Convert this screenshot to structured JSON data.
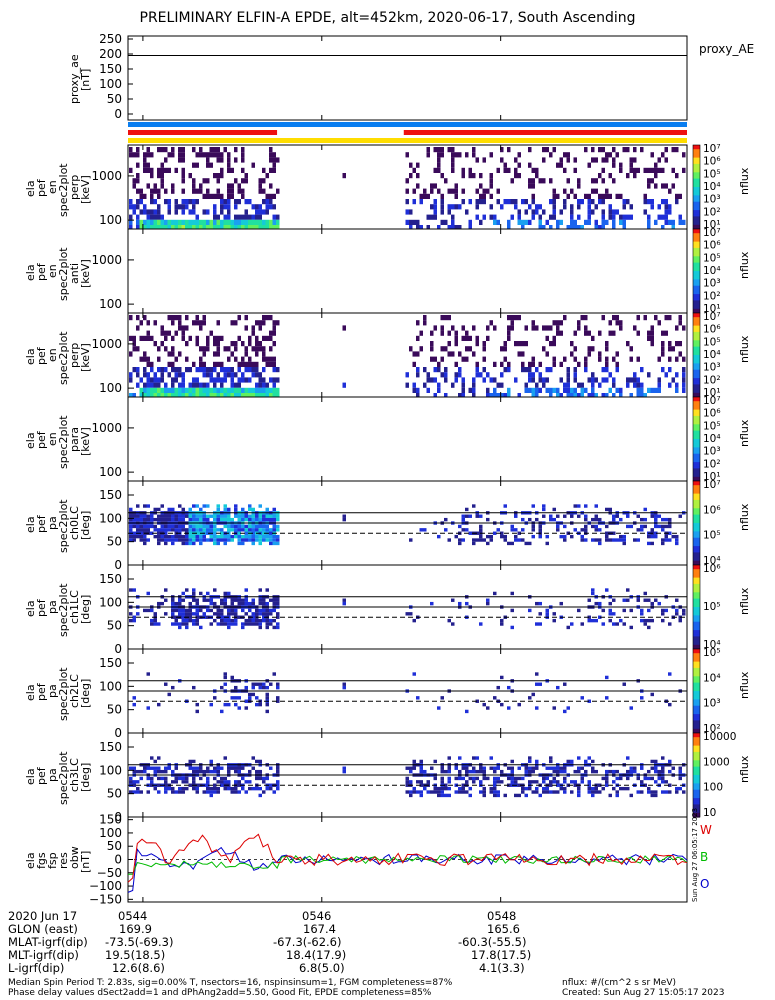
{
  "title": "PRELIMINARY ELFIN-A EPDE, alt=452km, 2020-06-17, South Ascending",
  "proxy_ae": {
    "ylabel_lines": [
      "proxy_ae",
      "[nT]"
    ],
    "legend": "proxy_AE",
    "ticks": [
      "250",
      "200",
      "150",
      "100",
      "50",
      "0"
    ],
    "tick_values": [
      250,
      200,
      150,
      100,
      50,
      0
    ],
    "ylim": [
      -20,
      260
    ],
    "value": 195
  },
  "status_bars": {
    "colors": {
      "blue": "#0a7ef0",
      "red": "#ee1010",
      "yellow": "#ffdd00"
    },
    "blue": {
      "start": "05:43:50",
      "end": "05:50:05"
    },
    "red": [
      {
        "start": "05:43:50",
        "end": "05:45:30"
      },
      {
        "start": "05:46:55",
        "end": "05:50:05"
      }
    ],
    "yellow": {
      "start": "05:43:50",
      "end": "05:50:05"
    }
  },
  "spectrograms": [
    {
      "id": "en-perp",
      "ylabel_lines": [
        "ela",
        "pef",
        "en",
        "spec2plot",
        "perp",
        "[keV]"
      ],
      "yticks": [
        "1000",
        "100"
      ],
      "yscale": "log",
      "ylim": [
        63,
        5000
      ],
      "cbar_ticks": [
        "10⁷",
        "10⁶",
        "10⁵",
        "10⁴",
        "10³",
        "10²",
        "10¹"
      ],
      "cbar_label": "nflux"
    },
    {
      "id": "en-anti",
      "ylabel_lines": [
        "ela",
        "pef",
        "en",
        "spec2plot",
        "anti",
        "[keV]"
      ],
      "yticks": [
        "1000",
        "100"
      ],
      "yscale": "log",
      "ylim": [
        63,
        5000
      ],
      "cbar_ticks": [
        "10⁷",
        "10⁶",
        "10⁵",
        "10⁴",
        "10³",
        "10²",
        "10¹"
      ],
      "cbar_label": "nflux"
    },
    {
      "id": "en-perp2",
      "ylabel_lines": [
        "ela",
        "pef",
        "en",
        "spec2plot",
        "perp",
        "[keV]"
      ],
      "yticks": [
        "1000",
        "100"
      ],
      "yscale": "log",
      "ylim": [
        63,
        5000
      ],
      "cbar_ticks": [
        "10⁷",
        "10⁶",
        "10⁵",
        "10⁴",
        "10³",
        "10²",
        "10¹"
      ],
      "cbar_label": "nflux"
    },
    {
      "id": "en-para",
      "ylabel_lines": [
        "ela",
        "pef",
        "en",
        "spec2plot",
        "para",
        "[keV]"
      ],
      "yticks": [
        "1000",
        "100"
      ],
      "yscale": "log",
      "ylim": [
        63,
        5000
      ],
      "cbar_ticks": [
        "10⁷",
        "10⁶",
        "10⁵",
        "10⁴",
        "10³",
        "10²",
        "10¹"
      ],
      "cbar_label": "nflux"
    },
    {
      "id": "pa-ch0",
      "ylabel_lines": [
        "ela",
        "pef",
        "pa",
        "spec2plot",
        "ch0LC",
        "[deg]"
      ],
      "yticks": [
        "150",
        "100",
        "50",
        "0"
      ],
      "yscale": "linear",
      "ylim": [
        0,
        180
      ],
      "cbar_ticks": [
        "10⁷",
        "10⁶",
        "10⁵",
        "10⁴"
      ],
      "cbar_label": "nflux"
    },
    {
      "id": "pa-ch1",
      "ylabel_lines": [
        "ela",
        "pef",
        "pa",
        "spec2plot",
        "ch1LC",
        "[deg]"
      ],
      "yticks": [
        "150",
        "100",
        "50",
        "0"
      ],
      "yscale": "linear",
      "ylim": [
        0,
        180
      ],
      "cbar_ticks": [
        "10⁶",
        "10⁵",
        "10⁴"
      ],
      "cbar_label": "nflux"
    },
    {
      "id": "pa-ch2",
      "ylabel_lines": [
        "ela",
        "pef",
        "pa",
        "spec2plot",
        "ch2LC",
        "[deg]"
      ],
      "yticks": [
        "150",
        "100",
        "50",
        "0"
      ],
      "yscale": "linear",
      "ylim": [
        0,
        180
      ],
      "cbar_ticks": [
        "10⁵",
        "10⁴",
        "10³",
        "10²"
      ],
      "cbar_label": "nflux"
    },
    {
      "id": "pa-ch3",
      "ylabel_lines": [
        "ela",
        "pef",
        "pa",
        "spec2plot",
        "ch3LC",
        "[deg]"
      ],
      "yticks": [
        "150",
        "100",
        "50",
        "0"
      ],
      "yscale": "linear",
      "ylim": [
        0,
        180
      ],
      "cbar_ticks": [
        "10000",
        "1000",
        "100",
        "10"
      ],
      "cbar_label": "nflux"
    }
  ],
  "fgm": {
    "ylabel_lines": [
      "ela",
      "fgs",
      "fsp",
      "res",
      "obw",
      "[nT]"
    ],
    "yticks": [
      "150",
      "100",
      "50",
      "0",
      "−50",
      "−100",
      "−150"
    ],
    "ylim": [
      -160,
      160
    ],
    "legend": [
      {
        "name": "W",
        "color": "#dd0000"
      },
      {
        "name": "B",
        "color": "#00bb00"
      },
      {
        "name": "O",
        "color": "#0000cc"
      }
    ]
  },
  "time_axis": {
    "start": "05:43:50",
    "end": "05:50:05",
    "labels": [
      {
        "time": "05:44",
        "text": "0544"
      },
      {
        "time": "05:46",
        "text": "0546"
      },
      {
        "time": "05:48",
        "text": "0548"
      }
    ]
  },
  "footer_rows": [
    {
      "label": "2020 Jun 17",
      "values": [
        "0544",
        "0546",
        "0548"
      ]
    },
    {
      "label": "GLON (east)",
      "values": [
        "169.9",
        "167.4",
        "165.6"
      ]
    },
    {
      "label": "MLAT-igrf(dip)",
      "values": [
        "-73.5(-69.3)",
        "-67.3(-62.6)",
        "-60.3(-55.5)"
      ]
    },
    {
      "label": "MLT-igrf(dip)",
      "values": [
        "19.5(18.5)",
        "18.4(17.9)",
        "17.8(17.5)"
      ]
    },
    {
      "label": "L-igrf(dip)",
      "values": [
        "12.6(8.6)",
        "6.8(5.0)",
        "4.1(3.3)"
      ]
    }
  ],
  "notes": [
    "Median Spin Period T: 2.83s, sig=0.00% T, nsectors=16, nspinsinsum=1, FGM completeness=87%",
    "Phase delay values dSect2add=1 and dPhAng2add=5.50, Good Fit, EPDE completeness=85%"
  ],
  "units_note": "nflux: #/(cm^2 s sr MeV)",
  "created": "Created: Sun Aug 27 15:05:17 2023",
  "stamp": "Sun Aug 27 06:05:17 2023"
}
